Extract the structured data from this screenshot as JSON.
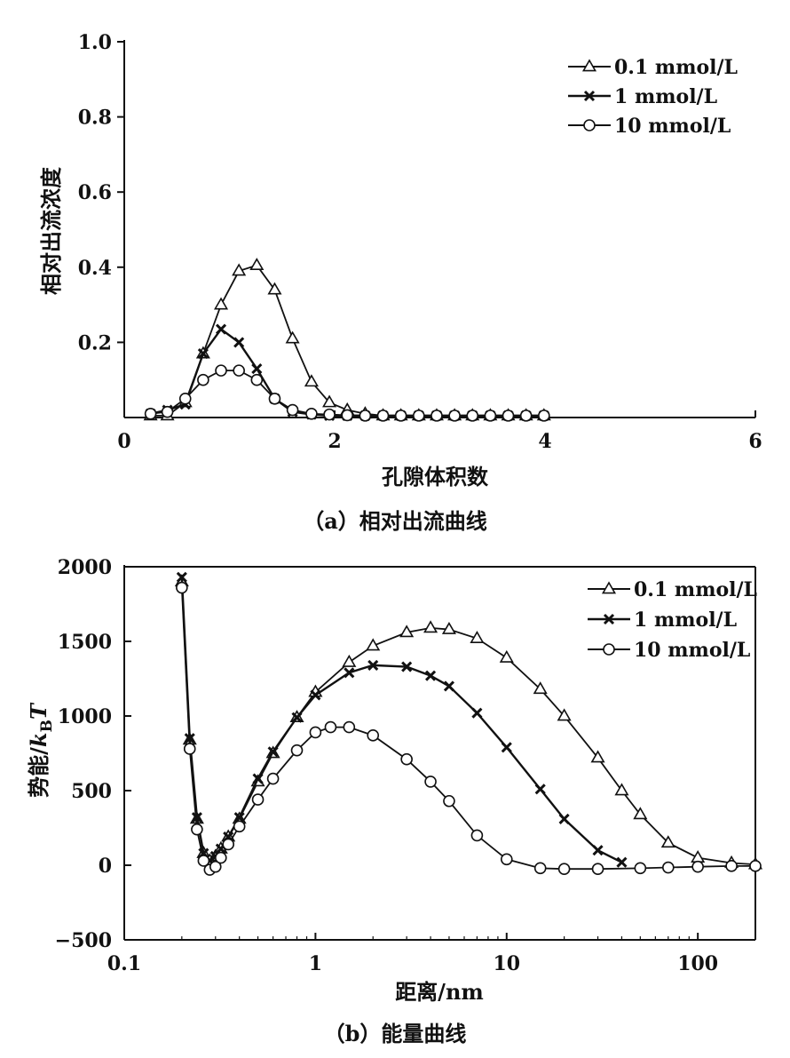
{
  "chart_data": [
    {
      "type": "line",
      "panel": "a",
      "caption": "（a）相对出流曲线",
      "xlabel": "孔隙体积数",
      "ylabel": "相对出流浓度",
      "xlim": [
        0,
        6
      ],
      "ylim": [
        0,
        1.0
      ],
      "xscale": "linear",
      "xticks": [
        0,
        2,
        4,
        6
      ],
      "xtick_labels": [
        "0",
        "2",
        "4",
        "6"
      ],
      "yticks": [
        0.2,
        0.4,
        0.6,
        0.8,
        1.0
      ],
      "ytick_labels": [
        "0.2",
        "0.4",
        "0.6",
        "0.8",
        "1.0"
      ],
      "legend_position": "top-right",
      "series": [
        {
          "name": "0.1 mmol/L",
          "marker": "triangle",
          "x": [
            0.25,
            0.41,
            0.58,
            0.75,
            0.92,
            1.09,
            1.26,
            1.43,
            1.6,
            1.78,
            1.95,
            2.12,
            2.29,
            2.46,
            2.63,
            2.8,
            2.97,
            3.14,
            3.31,
            3.48,
            3.65,
            3.82,
            3.99
          ],
          "values": [
            0.005,
            0.005,
            0.04,
            0.17,
            0.3,
            0.39,
            0.405,
            0.34,
            0.21,
            0.095,
            0.04,
            0.02,
            0.01,
            0.005,
            0.005,
            0.005,
            0.005,
            0.005,
            0.005,
            0.005,
            0.005,
            0.005,
            0.005
          ]
        },
        {
          "name": "1 mmol/L",
          "marker": "x",
          "x": [
            0.25,
            0.41,
            0.58,
            0.75,
            0.92,
            1.09,
            1.26,
            1.43,
            1.6,
            1.78,
            1.95,
            2.12,
            2.29,
            2.46,
            2.63,
            2.8,
            2.97,
            3.14,
            3.31,
            3.48,
            3.65,
            3.82,
            3.99
          ],
          "values": [
            0.01,
            0.02,
            0.035,
            0.17,
            0.235,
            0.2,
            0.13,
            0.05,
            0.015,
            0.008,
            0.005,
            0.005,
            0.005,
            0.005,
            0.005,
            0.005,
            0.005,
            0.005,
            0.005,
            0.005,
            0.005,
            0.005,
            0.005
          ]
        },
        {
          "name": "10 mmol/L",
          "marker": "circle",
          "x": [
            0.25,
            0.41,
            0.58,
            0.75,
            0.92,
            1.09,
            1.26,
            1.43,
            1.6,
            1.78,
            1.95,
            2.12,
            2.29,
            2.46,
            2.63,
            2.8,
            2.97,
            3.14,
            3.31,
            3.48,
            3.65,
            3.82,
            3.99
          ],
          "values": [
            0.01,
            0.015,
            0.05,
            0.1,
            0.125,
            0.125,
            0.1,
            0.05,
            0.02,
            0.01,
            0.008,
            0.006,
            0.005,
            0.005,
            0.005,
            0.005,
            0.005,
            0.005,
            0.005,
            0.005,
            0.005,
            0.005,
            0.005
          ]
        }
      ]
    },
    {
      "type": "line",
      "panel": "b",
      "caption": "（b）能量曲线",
      "xlabel": "距离/nm",
      "ylabel_prefix": "势能/",
      "ylabel_k": "k",
      "ylabel_sub": "B",
      "ylabel_T": "T",
      "xlim": [
        0.1,
        200
      ],
      "ylim": [
        -500,
        2000
      ],
      "xscale": "log",
      "xticks": [
        0.1,
        1,
        10,
        100
      ],
      "xtick_labels": [
        "0.1",
        "1",
        "10",
        "100"
      ],
      "yticks": [
        -500,
        0,
        500,
        1000,
        1500,
        2000
      ],
      "ytick_labels": [
        "−500",
        "0",
        "500",
        "1000",
        "1500",
        "2000"
      ],
      "legend_position": "top-right",
      "series": [
        {
          "name": "0.1 mmol/L",
          "marker": "triangle",
          "x": [
            0.2,
            0.22,
            0.24,
            0.26,
            0.28,
            0.3,
            0.32,
            0.35,
            0.4,
            0.5,
            0.6,
            0.8,
            1.0,
            1.5,
            2.0,
            3.0,
            4.0,
            5.0,
            7.0,
            10,
            15,
            20,
            30,
            40,
            50,
            70,
            100,
            150,
            200
          ],
          "values": [
            1900,
            840,
            310,
            80,
            30,
            60,
            110,
            190,
            310,
            560,
            750,
            990,
            1160,
            1360,
            1470,
            1560,
            1590,
            1580,
            1520,
            1390,
            1180,
            1000,
            720,
            500,
            340,
            150,
            50,
            15,
            5
          ]
        },
        {
          "name": "1 mmol/L",
          "marker": "x",
          "x": [
            0.2,
            0.22,
            0.24,
            0.26,
            0.28,
            0.3,
            0.32,
            0.35,
            0.4,
            0.5,
            0.6,
            0.8,
            1.0,
            1.5,
            2.0,
            3.0,
            4.0,
            5.0,
            7.0,
            10,
            15,
            20,
            30,
            40
          ],
          "values": [
            1930,
            850,
            320,
            80,
            30,
            60,
            110,
            190,
            320,
            580,
            760,
            990,
            1140,
            1290,
            1340,
            1330,
            1270,
            1200,
            1020,
            790,
            510,
            310,
            100,
            20
          ]
        },
        {
          "name": "10 mmol/L",
          "marker": "circle",
          "x": [
            0.2,
            0.22,
            0.24,
            0.26,
            0.28,
            0.3,
            0.32,
            0.35,
            0.4,
            0.5,
            0.6,
            0.8,
            1.0,
            1.2,
            1.5,
            2.0,
            3.0,
            4.0,
            5.0,
            7.0,
            10,
            15,
            20,
            30,
            50,
            70,
            100,
            150,
            200
          ],
          "values": [
            1860,
            780,
            240,
            30,
            -30,
            -10,
            50,
            140,
            260,
            440,
            580,
            770,
            890,
            925,
            925,
            870,
            710,
            560,
            430,
            200,
            40,
            -20,
            -25,
            -25,
            -20,
            -15,
            -10,
            -5,
            -5
          ]
        }
      ]
    }
  ]
}
